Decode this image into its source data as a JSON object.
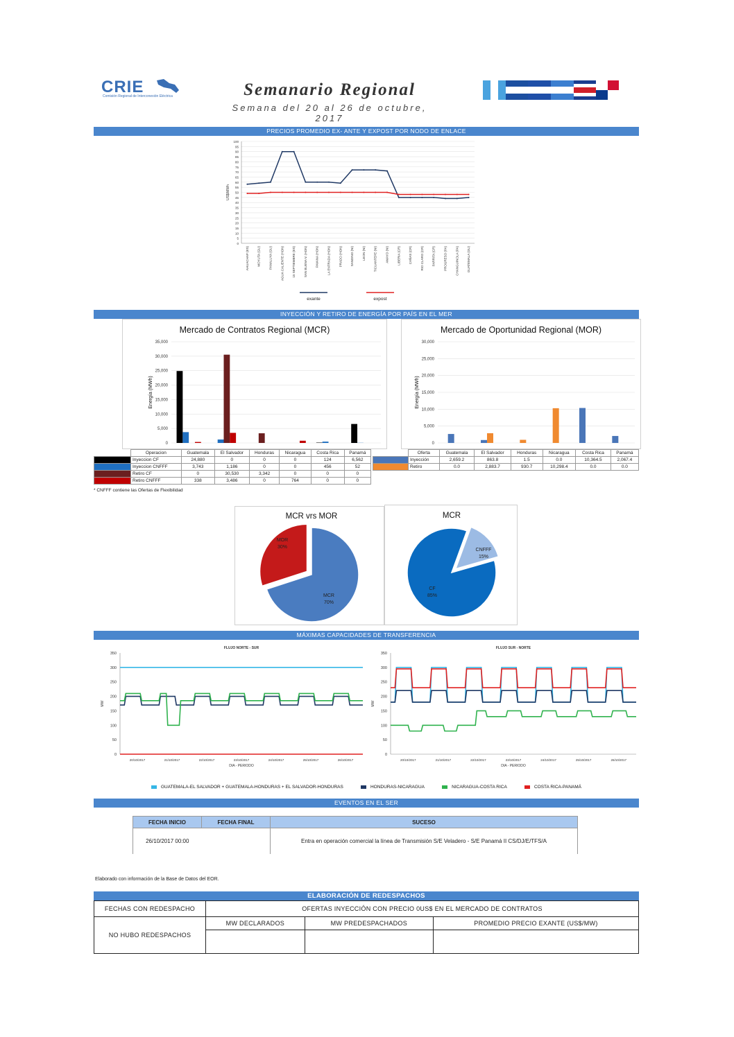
{
  "header": {
    "logo_text": "CRIE",
    "logo_sub": "Comisión Regional de Interconexión Eléctrica",
    "title": "Semanario Regional",
    "subtitle": "Semana del 20 al 26 de octubre, 2017"
  },
  "sections": {
    "prices": "PRECIOS PROMEDIO EX- ANTE Y EXPOST POR NODO DE ENLACE",
    "injection": "INYECCIÓN Y RETIRO DE ENERGÍA POR PAÍS EN EL MER",
    "transfer": "MÁXIMAS CAPACIDADES DE TRANSFERENCIA",
    "events": "EVENTOS EN EL SER"
  },
  "chart_data": [
    {
      "type": "line",
      "ylabel": "US$/MWh",
      "ylim": [
        0,
        100
      ],
      "yticks": [
        0,
        5,
        10,
        15,
        20,
        25,
        30,
        35,
        40,
        45,
        50,
        55,
        60,
        65,
        70,
        75,
        80,
        85,
        90,
        95,
        100
      ],
      "categories": [
        "AHUACHAP (ES)",
        "MOYUTA (GU)",
        "PANALUYA (GU)",
        "AGUA CALIENTE (HON)",
        "15 SEPTIEMBRE (ES)",
        "SAN BUENA V. (HON)",
        "PAVANA (HON)",
        "LA ENTRADA (HON)",
        "PRADO (HON)",
        "SANDINO (NI)",
        "LEON (NI)",
        "TICUANTEPE (NI)",
        "AMAYO (NI)",
        "LIBERIA (CR)",
        "CAÑAS (CR)",
        "RIO CLARO (CR)",
        "PARRITA (CR)",
        "PROGRESO (PA)",
        "CHANGUINOLA (PA)",
        "GUATEMALA (GU)"
      ],
      "series": [
        {
          "name": "exante",
          "color": "#1f3864",
          "values": [
            58,
            59,
            60,
            90,
            90,
            60,
            60,
            60,
            59,
            72,
            72,
            72,
            71,
            45,
            45,
            45,
            45,
            44,
            44,
            45
          ]
        },
        {
          "name": "expost",
          "color": "#e02020",
          "values": [
            49,
            49,
            50,
            50,
            50,
            50,
            50,
            50,
            50,
            50,
            50,
            50,
            50,
            48,
            48,
            48,
            48,
            48,
            48,
            48
          ]
        }
      ]
    },
    {
      "type": "bar",
      "title": "Mercado de Contratos Regional (MCR)",
      "ylabel": "Energía (MWh)",
      "ylim": [
        0,
        35000
      ],
      "yticks": [
        "0",
        "5,000",
        "10,000",
        "15,000",
        "20,000",
        "25,000",
        "30,000",
        "35,000"
      ],
      "categories": [
        "Guatemala",
        "El Salvador",
        "Honduras",
        "Nicaragua",
        "Costa Rica",
        "Panamá"
      ],
      "series": [
        {
          "name": "Inyeccion CF",
          "color": "#000000",
          "values": [
            24880,
            0,
            0,
            0,
            124,
            6562
          ],
          "labels": [
            "24,880",
            "0",
            "0",
            "0",
            "124",
            "6,562"
          ]
        },
        {
          "name": "Inyeccion CNFFF",
          "color": "#1f6fc0",
          "values": [
            3743,
            1186,
            0,
            0,
            456,
            52
          ],
          "labels": [
            "3,743",
            "1,186",
            "0",
            "0",
            "456",
            "52"
          ]
        },
        {
          "name": "Retiro CF",
          "color": "#6b1f1f",
          "values": [
            0,
            30530,
            3342,
            0,
            0,
            0
          ],
          "labels": [
            "0",
            "30,530",
            "3,342",
            "0",
            "0",
            "0"
          ]
        },
        {
          "name": "Retiro CNFFF",
          "color": "#c00000",
          "values": [
            338,
            3486,
            0,
            764,
            0,
            0
          ],
          "labels": [
            "338",
            "3,486",
            "0",
            "764",
            "0",
            "0"
          ]
        }
      ],
      "table_header": "Operacion",
      "footnote": "* CNFFF contiene las Ofertas de Flexibilidad"
    },
    {
      "type": "bar",
      "title": "Mercado de Oportunidad Regional (MOR)",
      "ylabel": "Energía (MWh)",
      "ylim": [
        0,
        30000
      ],
      "yticks": [
        "0",
        "5,000",
        "10,000",
        "15,000",
        "20,000",
        "25,000",
        "30,000"
      ],
      "categories": [
        "Guatemala",
        "El Salvador",
        "Honduras",
        "Nicaragua",
        "Costa Rica",
        "Panamá"
      ],
      "series": [
        {
          "name": "Inyección",
          "color": "#4a76b8",
          "values": [
            2659.2,
            863.8,
            1.5,
            0.0,
            10364.5,
            2067.4
          ],
          "labels": [
            "2,659.2",
            "863.8",
            "1.5",
            "0.0",
            "10,364.5",
            "2,067.4"
          ]
        },
        {
          "name": "Retiro",
          "color": "#f08a30",
          "values": [
            0.0,
            2883.7,
            930.7,
            10298.4,
            0.0,
            0.0
          ],
          "labels": [
            "0.0",
            "2,883.7",
            "930.7",
            "10,298.4",
            "0.0",
            "0.0"
          ]
        }
      ],
      "table_header": "Oferta"
    },
    {
      "type": "pie",
      "title": "MCR vrs MOR",
      "slices": [
        {
          "label": "MOR",
          "pct_label": "30%",
          "value": 30,
          "color": "#c41a1a"
        },
        {
          "label": "MCR",
          "pct_label": "70%",
          "value": 70,
          "color": "#4a7cc0"
        }
      ]
    },
    {
      "type": "pie",
      "title": "MCR",
      "slices": [
        {
          "label": "CNFFF",
          "pct_label": "15%",
          "value": 15,
          "color": "#9cbbe4"
        },
        {
          "label": "CF",
          "pct_label": "85%",
          "value": 85,
          "color": "#0a6bc0"
        }
      ]
    },
    {
      "type": "line",
      "title": "FLUJO NORTE - SUR",
      "xlabel": "DIA - PERIODO",
      "ylabel": "MW",
      "ylim": [
        0,
        350
      ],
      "yticks": [
        0,
        50,
        100,
        150,
        200,
        250,
        300,
        350
      ],
      "xticks": [
        "20/10/2017",
        "21/10/2017",
        "22/10/2017",
        "23/10/2017",
        "24/10/2017",
        "25/10/2017",
        "26/10/2017"
      ],
      "series": [
        {
          "name": "GUATEMALA-EL SALVADOR + GUATEMALA-HONDURAS + EL SALVADOR-HONDURAS",
          "color": "#35b6e6",
          "pattern": "const",
          "base": 300
        },
        {
          "name": "HONDURAS-NICARAGUA",
          "color": "#1f3864",
          "pattern": "cycle",
          "base": 200,
          "low": 170
        },
        {
          "name": "NICARAGUA-COSTA RICA",
          "color": "#2fb24d",
          "pattern": "cycle",
          "base": 210,
          "low": 185,
          "dip": 100
        },
        {
          "name": "COSTA RICA-PANAMÁ",
          "color": "#e02020",
          "pattern": "const",
          "base": 0
        }
      ]
    },
    {
      "type": "line",
      "title": "FLUJO SUR - NORTE",
      "xlabel": "DIA - PERIODO",
      "ylabel": "MW",
      "ylim": [
        0,
        350
      ],
      "yticks": [
        0,
        50,
        100,
        150,
        200,
        250,
        300,
        350
      ],
      "xticks": [
        "20/10/2017",
        "21/10/2017",
        "22/10/2017",
        "23/10/2017",
        "24/10/2017",
        "25/10/2017",
        "26/10/2017"
      ],
      "series": [
        {
          "name": "GUATEMALA-EL SALVADOR + GUATEMALA-HONDURAS + EL SALVADOR-HONDURAS",
          "color": "#35b6e6",
          "pattern": "cycle",
          "base": 300,
          "low": 180
        },
        {
          "name": "HONDURAS-NICARAGUA",
          "color": "#1f3864",
          "pattern": "cycle",
          "base": 220,
          "low": 180
        },
        {
          "name": "NICARAGUA-COSTA RICA",
          "color": "#2fb24d",
          "pattern": "ramp",
          "base": 100,
          "low": 80
        },
        {
          "name": "COSTA RICA-PANAMÁ",
          "color": "#e02020",
          "pattern": "cycle",
          "base": 295,
          "low": 230
        }
      ]
    }
  ],
  "flow_legend": [
    {
      "label": "GUATEMALA-EL SALVADOR + GUATEMALA-HONDURAS + EL SALVADOR-HONDURAS",
      "color": "#35b6e6"
    },
    {
      "label": "HONDURAS-NICARAGUA",
      "color": "#1f3864"
    },
    {
      "label": "NICARAGUA-COSTA RICA",
      "color": "#2fb24d"
    },
    {
      "label": "COSTA RICA-PANAMÁ",
      "color": "#e02020"
    }
  ],
  "events": {
    "col_start": "FECHA INICIO",
    "col_end": "FECHA FINAL",
    "col_event": "SUCESO",
    "row_start": "26/10/2017 00:00",
    "row_event": "Entra en operación comercial la línea de Transmisión S/E Veladero - S/E Panamá II CS/DJ/E/TFS/A"
  },
  "source_note": "Elaborado con información de la Base de Datos del EOR.",
  "redispatch": {
    "title": "ELABORACIÓN DE REDESPACHOS",
    "col_dates": "FECHAS CON REDESPACHO",
    "col_offers": "OFERTAS INYECCIÓN CON PRECIO 0US$ EN EL MERCADO DE CONTRATOS",
    "sub1": "MW DECLARADOS",
    "sub2": "MW PREDESPACHADOS",
    "sub3": "PROMEDIO PRECIO EXANTE (US$/MW)",
    "none": "NO HUBO REDESPACHOS"
  },
  "colors": {
    "section_bar": "#4a86cd",
    "table_header_bg": "#a9c8ef"
  }
}
